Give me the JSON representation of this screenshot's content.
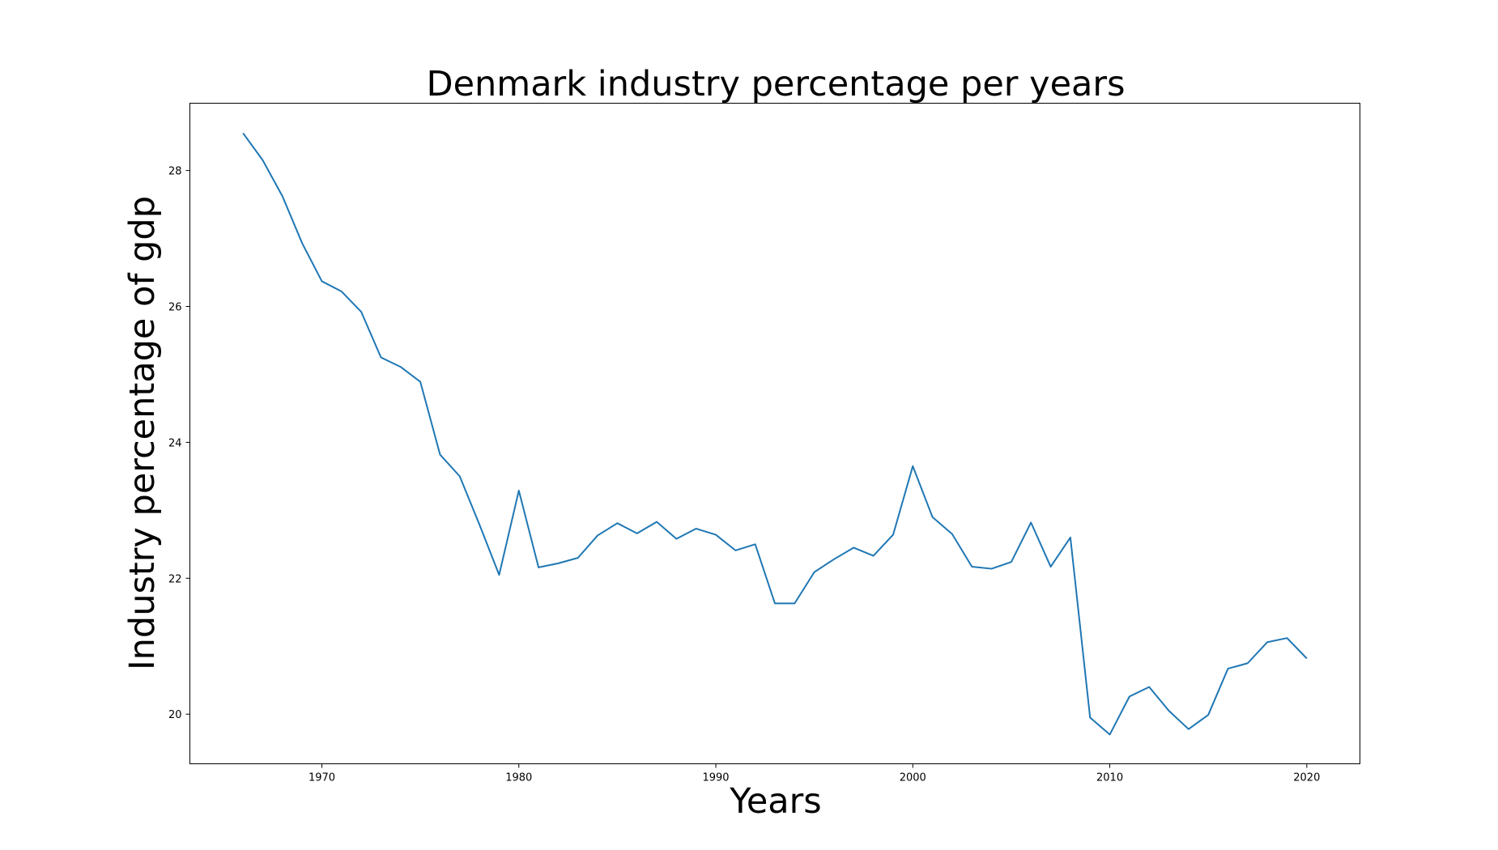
{
  "chart_data": {
    "type": "line",
    "title": "Denmark industry percentage per years",
    "xlabel": "Years",
    "ylabel": "Industry percentage of gdp",
    "xlim": [
      1963.3,
      2022.7
    ],
    "ylim": [
      19.27,
      28.99
    ],
    "grid": false,
    "legend": "none",
    "x_ticks": [
      1970,
      1980,
      1990,
      2000,
      2010,
      2020
    ],
    "y_ticks": [
      20,
      22,
      24,
      26,
      28
    ],
    "series": [
      {
        "color": "#1f77b4",
        "x": [
          1966,
          1967,
          1968,
          1969,
          1970,
          1971,
          1972,
          1973,
          1974,
          1975,
          1976,
          1977,
          1978,
          1979,
          1980,
          1981,
          1982,
          1983,
          1984,
          1985,
          1986,
          1987,
          1988,
          1989,
          1990,
          1991,
          1992,
          1993,
          1994,
          1995,
          1996,
          1997,
          1998,
          1999,
          2000,
          2001,
          2002,
          2003,
          2004,
          2005,
          2006,
          2007,
          2008,
          2009,
          2010,
          2011,
          2012,
          2013,
          2014,
          2015,
          2016,
          2017,
          2018,
          2019,
          2020
        ],
        "y": [
          28.55,
          28.15,
          27.62,
          26.93,
          26.37,
          26.22,
          25.92,
          25.25,
          25.11,
          24.89,
          23.82,
          23.5,
          22.79,
          22.05,
          23.29,
          22.16,
          22.22,
          22.3,
          22.63,
          22.81,
          22.66,
          22.83,
          22.58,
          22.73,
          22.64,
          22.41,
          22.5,
          21.63,
          21.63,
          22.09,
          22.28,
          22.45,
          22.33,
          22.64,
          23.65,
          22.9,
          22.65,
          22.17,
          22.14,
          22.24,
          22.82,
          22.17,
          22.6,
          19.95,
          19.7,
          20.26,
          20.4,
          20.05,
          19.78,
          19.99,
          20.67,
          20.75,
          21.06,
          21.12,
          20.82
        ]
      }
    ]
  }
}
